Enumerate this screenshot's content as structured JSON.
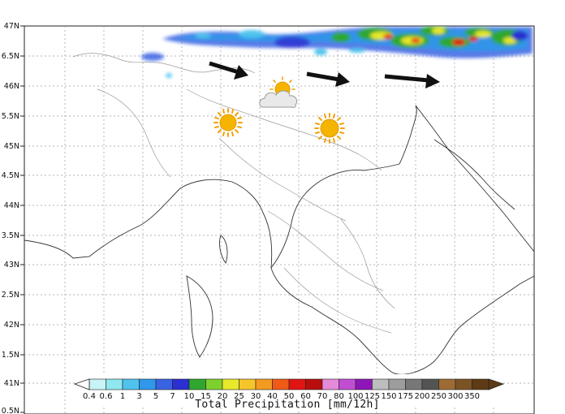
{
  "map": {
    "lat_labels": [
      "47N",
      "6.5N",
      "46N",
      "5.5N",
      "45N",
      "4.5N",
      "44N",
      "3.5N",
      "43N",
      "2.5N",
      "42N",
      "1.5N",
      "41N",
      "0.5N"
    ]
  },
  "colorbar": {
    "title": "Total Precipitation [mm/12h]",
    "ticks": [
      "0.4",
      "0.6",
      "1",
      "3",
      "5",
      "7",
      "10",
      "15",
      "20",
      "25",
      "30",
      "40",
      "50",
      "60",
      "70",
      "80",
      "100",
      "125",
      "150",
      "175",
      "200",
      "250",
      "300",
      "350"
    ],
    "colors": [
      "#c8f3f7",
      "#8fe8f0",
      "#4fc3ee",
      "#2f98ea",
      "#3a63e3",
      "#2c2fd1",
      "#2fa72f",
      "#7fcf2f",
      "#e7e92a",
      "#f6c52a",
      "#f39a21",
      "#ef5a17",
      "#e11414",
      "#b80e0e",
      "#e58ad9",
      "#c04ed3",
      "#8e16b6",
      "#bdbdbd",
      "#9d9d9d",
      "#777777",
      "#545454",
      "#9d6c34",
      "#7b5325",
      "#5e3b15"
    ]
  },
  "weather_icons": [
    {
      "name": "sun-icon",
      "kind": "sun"
    },
    {
      "name": "sun-behind-cloud-icon",
      "kind": "sun-cloud"
    },
    {
      "name": "sun-icon",
      "kind": "sun"
    }
  ],
  "wind_arrows": [
    {
      "name": "wind-arrow-east-icon",
      "direction": "east"
    },
    {
      "name": "wind-arrow-east-icon",
      "direction": "east"
    },
    {
      "name": "wind-arrow-east-icon",
      "direction": "east"
    }
  ]
}
